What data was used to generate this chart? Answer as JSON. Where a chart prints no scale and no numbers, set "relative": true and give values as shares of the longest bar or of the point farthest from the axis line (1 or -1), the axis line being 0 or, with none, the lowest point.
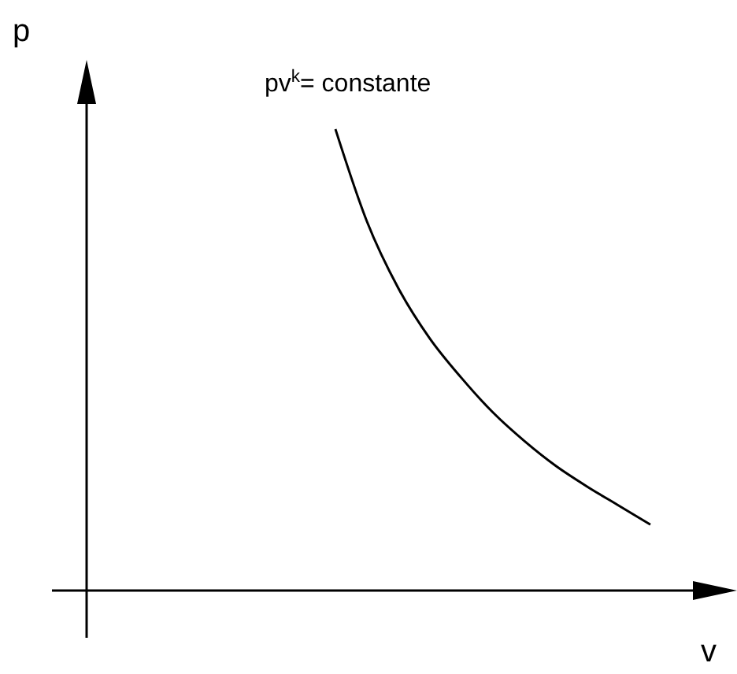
{
  "chart_data": {
    "type": "line",
    "relative": true,
    "xlabel": "v",
    "ylabel": "p",
    "annotations": [
      "pv$^{k}$= constante"
    ],
    "categories": [
      null,
      null,
      null,
      null,
      null,
      null,
      null,
      null,
      null,
      null,
      null,
      null,
      null,
      null,
      null,
      null,
      null,
      null,
      null,
      null,
      null
    ],
    "values": [
      null,
      null,
      null,
      null,
      null,
      null,
      null,
      null,
      1,
      0.8,
      0.655,
      0.546,
      0.461,
      0.386,
      0.324,
      0.27,
      0.225,
      0.184,
      0.143,
      null,
      null
    ],
    "color": "#000000"
  }
}
